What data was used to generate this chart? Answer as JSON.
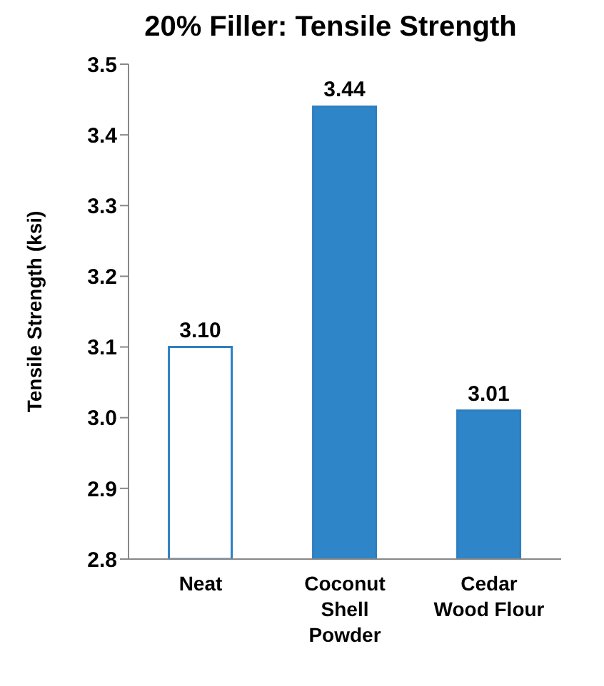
{
  "chart_data": {
    "type": "bar",
    "title": "20% Filler: Tensile Strength",
    "ylabel": "Tensile Strength (ksi)",
    "categories": [
      "Neat",
      "Coconut\nShell\nPowder",
      "Cedar\nWood Flour"
    ],
    "series": [
      {
        "color": "#2e7fc0",
        "colors": [
          "#ffffff",
          "#2e86c8",
          "#2e86c8"
        ],
        "values": [
          3.1,
          3.44,
          3.01
        ],
        "value_labels": [
          "3.10",
          "3.44",
          "3.01"
        ]
      }
    ],
    "ylim": [
      2.8,
      3.5
    ],
    "yticks": [
      2.8,
      2.9,
      {
        "value": 3.0,
        "label": "3.0"
      },
      3.1,
      3.2,
      3.3,
      3.4,
      3.5
    ],
    "grid": false
  }
}
